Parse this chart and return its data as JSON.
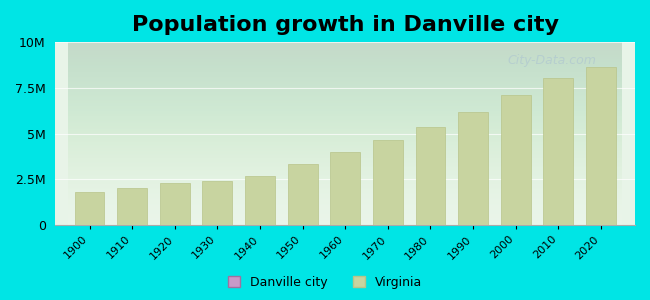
{
  "title": "Population growth in Danville city",
  "title_fontsize": 16,
  "background_color": "#00e5e5",
  "plot_bg_top": "#e8f4e8",
  "plot_bg_bottom": "#f0faf0",
  "years": [
    1900,
    1910,
    1920,
    1930,
    1940,
    1950,
    1960,
    1970,
    1980,
    1990,
    2000,
    2010,
    2020
  ],
  "virginia_values": [
    1800000,
    2000000,
    2310000,
    2420000,
    2680000,
    3320000,
    3970000,
    4650000,
    5350000,
    6190000,
    7080000,
    8020000,
    8630000
  ],
  "danville_values": [
    0,
    0,
    0,
    0,
    0,
    0,
    0,
    0,
    0,
    0,
    0,
    0,
    0
  ],
  "bar_color": "#c8d4a0",
  "bar_edge_color": "#b8c48a",
  "danville_legend_color": "#c89ac8",
  "virginia_legend_color": "#c8d4a0",
  "ylim": [
    0,
    10000000
  ],
  "yticks": [
    0,
    2500000,
    5000000,
    7500000,
    10000000
  ],
  "ytick_labels": [
    "0",
    "2.5M",
    "5M",
    "7.5M",
    "10M"
  ],
  "watermark_text": "City-Data.com",
  "watermark_color": "#b0c8d0",
  "watermark_alpha": 0.7
}
